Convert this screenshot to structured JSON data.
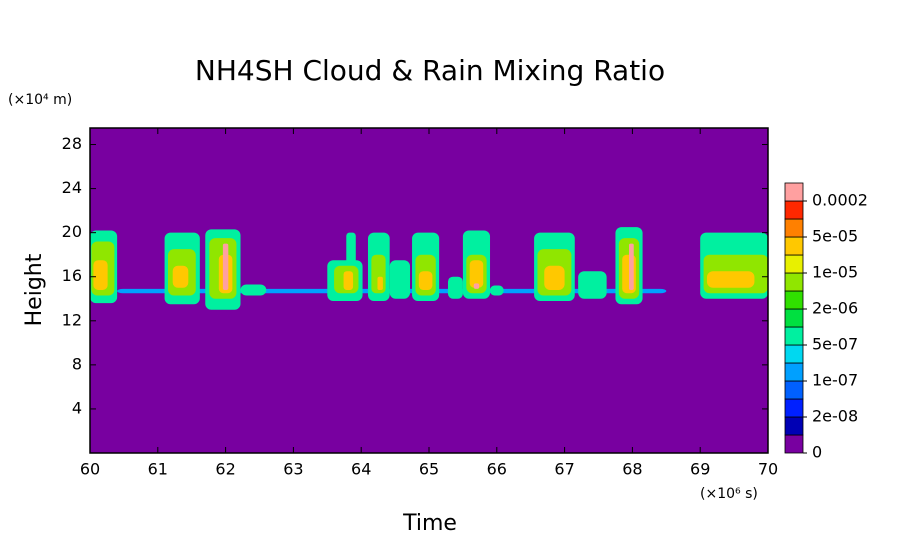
{
  "chart_data": {
    "type": "contour",
    "title": "NH4SH Cloud & Rain Mixing Ratio",
    "xlabel": "Time",
    "ylabel": "Height",
    "xunit": "(×10⁶ s)",
    "yunit": "(×10⁴ m)",
    "xlim": [
      60,
      70
    ],
    "xticks": [
      60,
      61,
      62,
      63,
      64,
      65,
      66,
      67,
      68,
      69,
      70
    ],
    "ylim": [
      0,
      29.5
    ],
    "yticks": [
      4,
      8,
      12,
      16,
      20,
      24,
      28
    ],
    "background": 0,
    "colorbar": {
      "colors": [
        "#7800a0",
        "#0000b4",
        "#0020ff",
        "#0060ff",
        "#00a0ff",
        "#00d8f0",
        "#00f0a0",
        "#00e040",
        "#30e000",
        "#90e600",
        "#e8f000",
        "#ffc800",
        "#ff8000",
        "#ff2800",
        "#ffa0a0"
      ],
      "levels": [
        0,
        {
          "value": 2e-08,
          "label": "2e-08"
        },
        {
          "value": 1e-07,
          "label": "1e-07"
        },
        {
          "value": 5e-07,
          "label": "5e-07"
        },
        {
          "value": 2e-06,
          "label": "2e-06"
        },
        {
          "value": 1e-05,
          "label": "1e-05"
        },
        {
          "value": 5e-05,
          "label": "5e-05"
        },
        0.0002
      ]
    },
    "cells": [
      {
        "x": [
          60.4,
          68.5
        ],
        "y": [
          14.5,
          14.9
        ],
        "value": 5e-08
      },
      {
        "x": [
          60.0,
          60.4
        ],
        "y": [
          13.6,
          20.2
        ],
        "value": 3e-07
      },
      {
        "x": [
          60.02,
          60.36
        ],
        "y": [
          14.3,
          19.2
        ],
        "value": 3e-06
      },
      {
        "x": [
          60.05,
          60.26
        ],
        "y": [
          14.8,
          17.5
        ],
        "value": 1.5e-05
      },
      {
        "x": [
          61.1,
          61.62
        ],
        "y": [
          13.5,
          20.0
        ],
        "value": 3e-07
      },
      {
        "x": [
          61.15,
          61.56
        ],
        "y": [
          14.3,
          18.5
        ],
        "value": 3e-06
      },
      {
        "x": [
          61.22,
          61.45
        ],
        "y": [
          15.0,
          17.0
        ],
        "value": 1.5e-05
      },
      {
        "x": [
          61.7,
          62.22
        ],
        "y": [
          13.0,
          20.3
        ],
        "value": 3e-07
      },
      {
        "x": [
          61.76,
          62.16
        ],
        "y": [
          14.0,
          19.5
        ],
        "value": 3e-06
      },
      {
        "x": [
          61.9,
          62.1
        ],
        "y": [
          14.5,
          18.0
        ],
        "value": 1.5e-05
      },
      {
        "x": [
          61.96,
          62.04
        ],
        "y": [
          14.8,
          19.0
        ],
        "value": 0.0001
      },
      {
        "x": [
          62.22,
          62.6
        ],
        "y": [
          14.3,
          15.3
        ],
        "value": 3e-07
      },
      {
        "x": [
          63.5,
          64.02
        ],
        "y": [
          13.8,
          17.5
        ],
        "value": 3e-07
      },
      {
        "x": [
          63.78,
          63.92
        ],
        "y": [
          16.5,
          20.0
        ],
        "value": 3e-07
      },
      {
        "x": [
          63.6,
          63.96
        ],
        "y": [
          14.5,
          17.0
        ],
        "value": 3e-06
      },
      {
        "x": [
          63.74,
          63.88
        ],
        "y": [
          14.8,
          16.5
        ],
        "value": 1.5e-05
      },
      {
        "x": [
          64.1,
          64.42
        ],
        "y": [
          13.8,
          20.0
        ],
        "value": 3e-07
      },
      {
        "x": [
          64.15,
          64.36
        ],
        "y": [
          14.5,
          18.0
        ],
        "value": 3e-06
      },
      {
        "x": [
          64.24,
          64.32
        ],
        "y": [
          14.8,
          16.0
        ],
        "value": 1.5e-05
      },
      {
        "x": [
          64.42,
          64.72
        ],
        "y": [
          14.0,
          17.5
        ],
        "value": 3e-07
      },
      {
        "x": [
          64.75,
          65.15
        ],
        "y": [
          13.8,
          20.0
        ],
        "value": 3e-07
      },
      {
        "x": [
          64.8,
          65.1
        ],
        "y": [
          14.3,
          18.0
        ],
        "value": 3e-06
      },
      {
        "x": [
          64.85,
          65.05
        ],
        "y": [
          14.8,
          16.5
        ],
        "value": 1.5e-05
      },
      {
        "x": [
          65.28,
          65.5
        ],
        "y": [
          14.0,
          16.0
        ],
        "value": 3e-07
      },
      {
        "x": [
          65.5,
          65.9
        ],
        "y": [
          14.0,
          20.2
        ],
        "value": 3e-07
      },
      {
        "x": [
          65.55,
          65.85
        ],
        "y": [
          14.5,
          18.0
        ],
        "value": 3e-06
      },
      {
        "x": [
          65.6,
          65.8
        ],
        "y": [
          15.0,
          17.5
        ],
        "value": 1.5e-05
      },
      {
        "x": [
          65.66,
          65.74
        ],
        "y": [
          14.9,
          15.4
        ],
        "value": 0.0001
      },
      {
        "x": [
          65.9,
          66.1
        ],
        "y": [
          14.3,
          15.2
        ],
        "value": 3e-07
      },
      {
        "x": [
          66.55,
          67.15
        ],
        "y": [
          13.8,
          20.0
        ],
        "value": 3e-07
      },
      {
        "x": [
          66.6,
          67.1
        ],
        "y": [
          14.3,
          18.5
        ],
        "value": 3e-06
      },
      {
        "x": [
          66.7,
          67.0
        ],
        "y": [
          14.8,
          17.0
        ],
        "value": 1.5e-05
      },
      {
        "x": [
          67.2,
          67.62
        ],
        "y": [
          14.0,
          16.5
        ],
        "value": 3e-07
      },
      {
        "x": [
          67.75,
          68.15
        ],
        "y": [
          13.5,
          20.5
        ],
        "value": 3e-07
      },
      {
        "x": [
          67.8,
          68.1
        ],
        "y": [
          14.0,
          19.5
        ],
        "value": 3e-06
      },
      {
        "x": [
          67.85,
          68.05
        ],
        "y": [
          14.5,
          18.0
        ],
        "value": 1.5e-05
      },
      {
        "x": [
          67.95,
          68.02
        ],
        "y": [
          14.8,
          19.0
        ],
        "value": 0.0001
      },
      {
        "x": [
          69.0,
          70.0
        ],
        "y": [
          14.0,
          20.0
        ],
        "value": 3e-07
      },
      {
        "x": [
          69.05,
          70.0
        ],
        "y": [
          14.5,
          18.0
        ],
        "value": 3e-06
      },
      {
        "x": [
          69.1,
          69.8
        ],
        "y": [
          15.0,
          16.5
        ],
        "value": 1.5e-05
      }
    ]
  }
}
